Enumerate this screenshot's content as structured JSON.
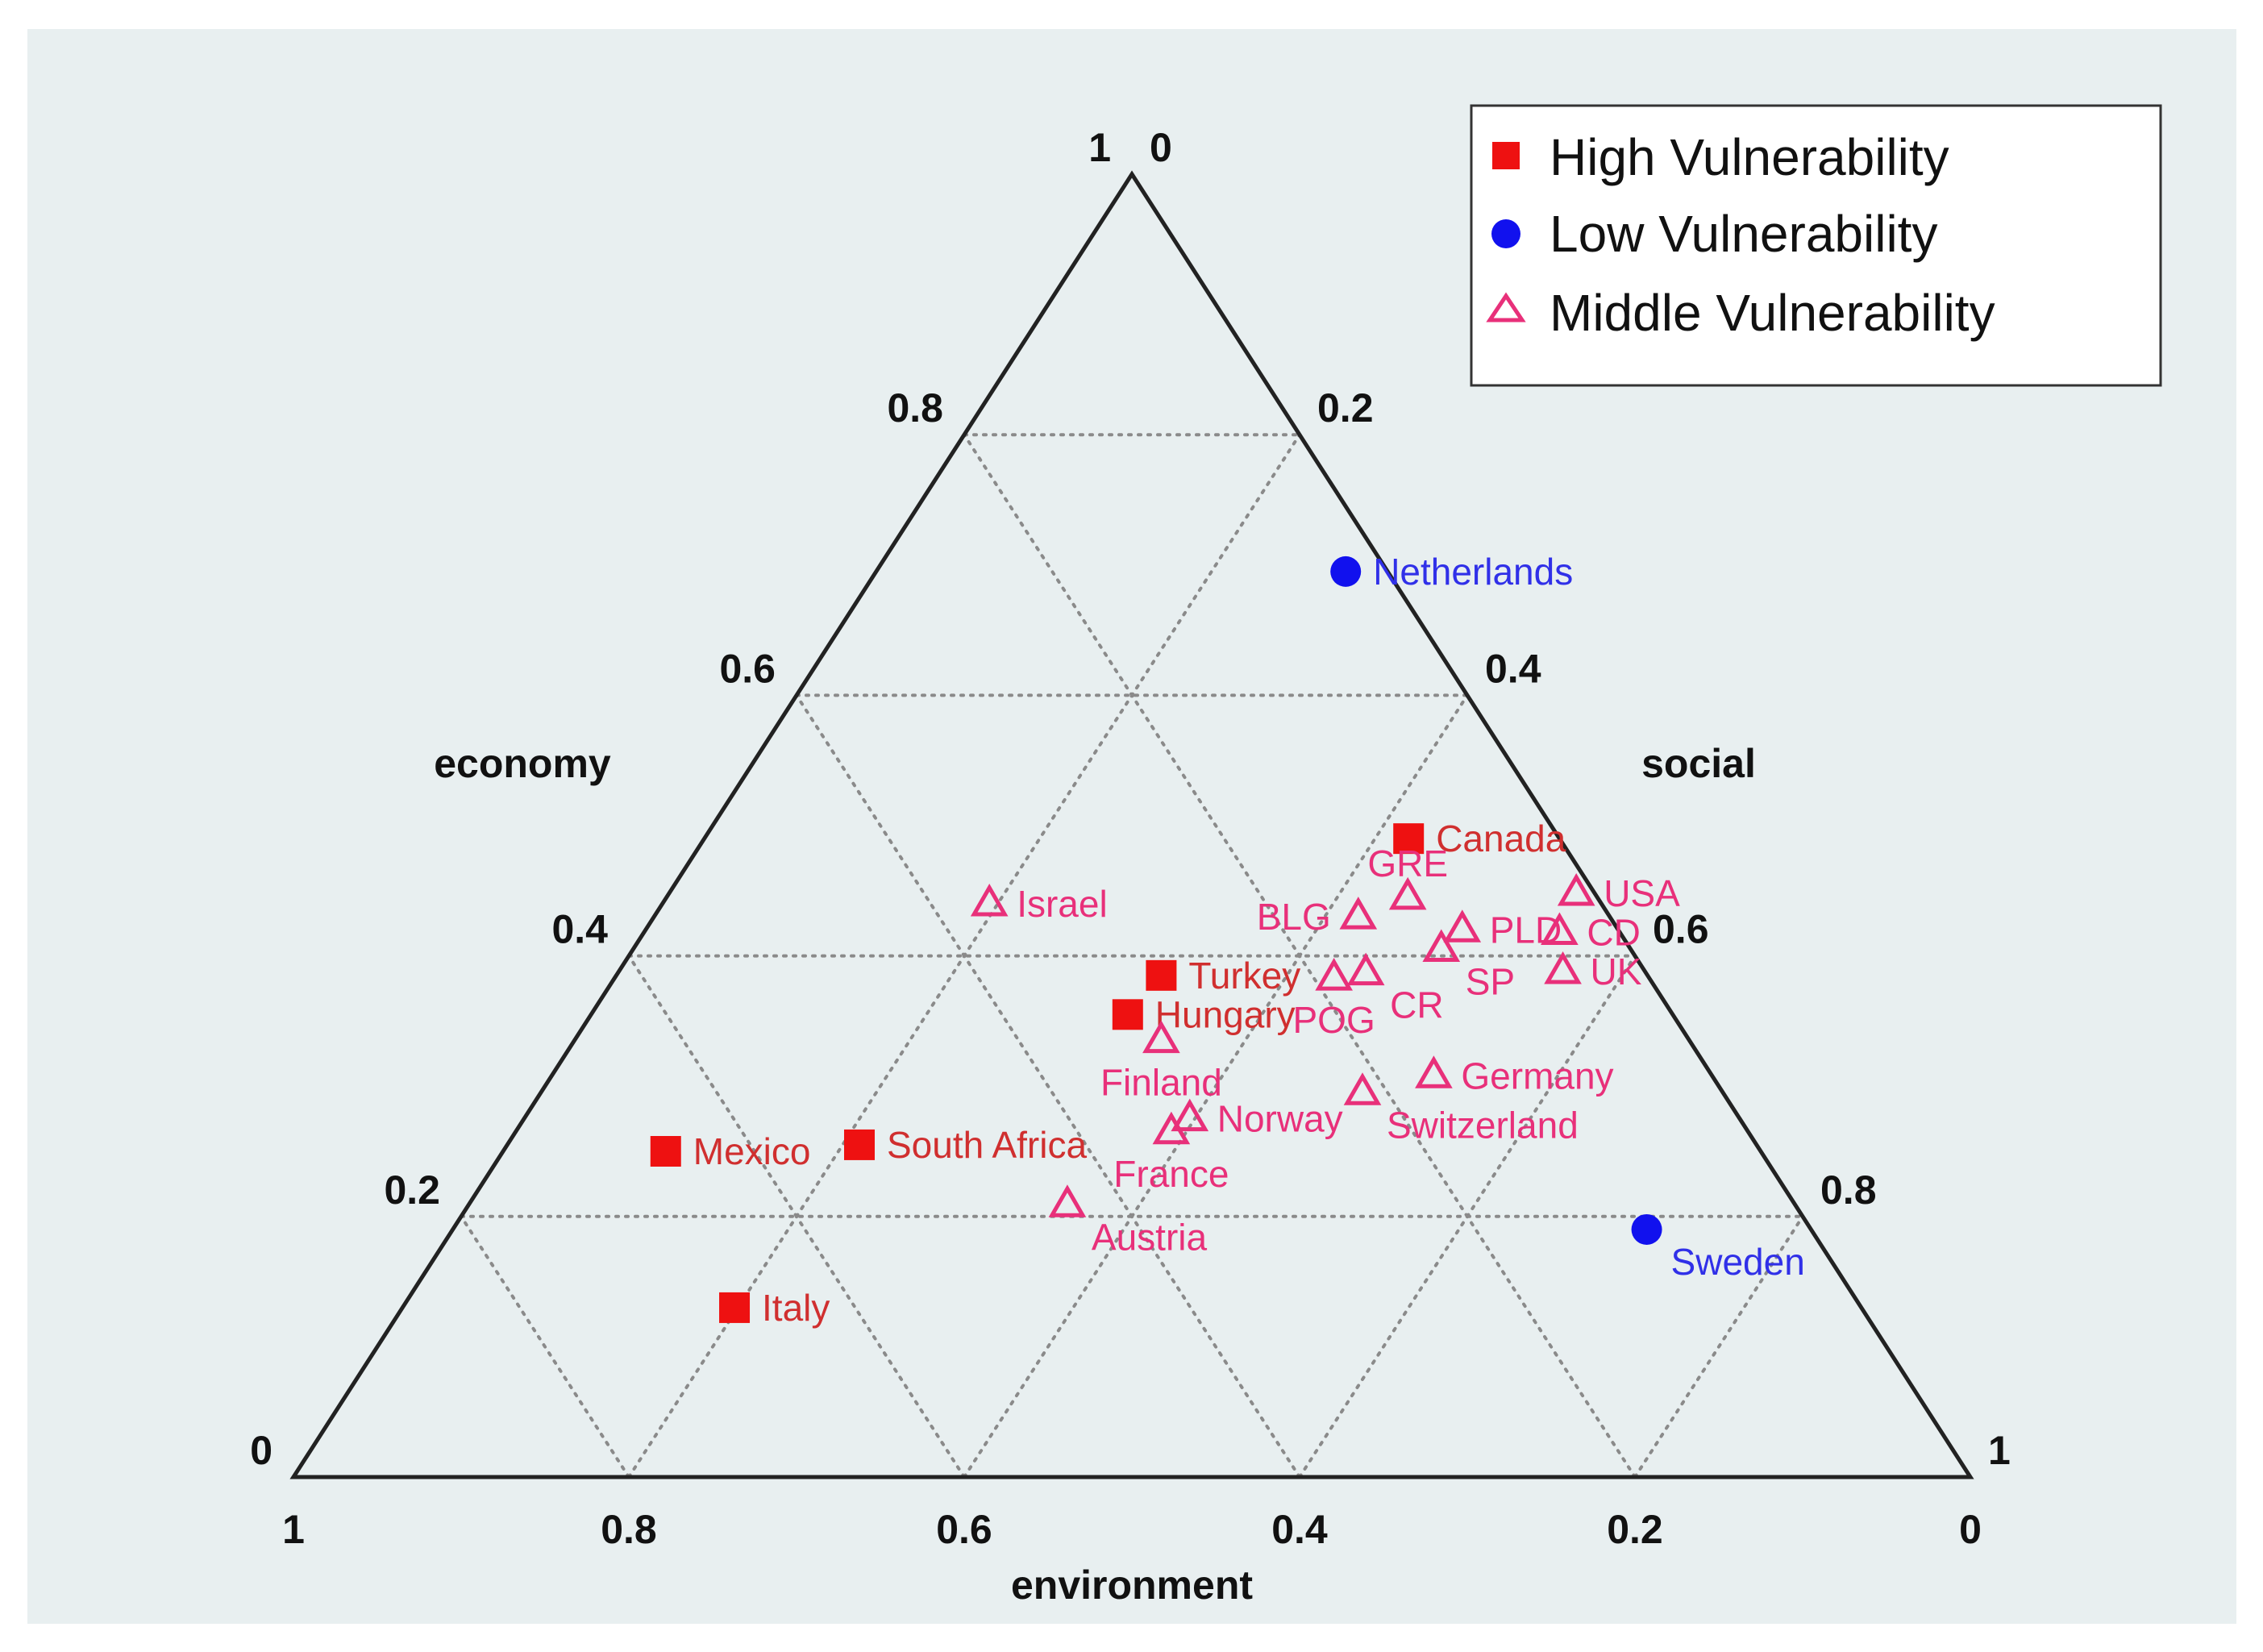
{
  "chart_data": {
    "type": "ternary-scatter",
    "axes": {
      "economy": {
        "title": "economy",
        "ticks": [
          "1",
          "0.8",
          "0.6",
          "0.4",
          "0.2",
          "0"
        ]
      },
      "social": {
        "title": "social",
        "ticks": [
          "0",
          "0.2",
          "0.4",
          "0.6",
          "0.8",
          "1"
        ]
      },
      "environment": {
        "title": "environment",
        "ticks": [
          "1",
          "0.8",
          "0.6",
          "0.4",
          "0.2",
          "0"
        ]
      }
    },
    "gridlines": [
      0.2,
      0.4,
      0.6,
      0.8
    ],
    "legend": [
      {
        "key": "high",
        "label": "High Vulnerability",
        "marker": "square",
        "color": "#ee1111"
      },
      {
        "key": "low",
        "label": "Low Vulnerability",
        "marker": "circle",
        "color": "#1111ee"
      },
      {
        "key": "middle",
        "label": "Middle Vulnerability",
        "marker": "triangle",
        "color": "#e8307a"
      }
    ],
    "label_colors": {
      "high": "#d02f2f",
      "low": "#3030e8",
      "middle": "#e8307a"
    },
    "points": [
      {
        "name": "Netherlands",
        "group": "low",
        "economy": 0.695,
        "social": 0.28,
        "label_pos": "right"
      },
      {
        "name": "Sweden",
        "group": "low",
        "economy": 0.19,
        "social": 0.712,
        "label_pos": "below-right"
      },
      {
        "name": "Canada",
        "group": "high",
        "economy": 0.49,
        "social": 0.42,
        "label_pos": "right"
      },
      {
        "name": "Turkey",
        "group": "high",
        "economy": 0.385,
        "social": 0.325,
        "label_pos": "right"
      },
      {
        "name": "Hungary",
        "group": "high",
        "economy": 0.355,
        "social": 0.32,
        "label_pos": "right"
      },
      {
        "name": "Mexico",
        "group": "high",
        "economy": 0.25,
        "social": 0.097,
        "label_pos": "right"
      },
      {
        "name": "South Africa",
        "group": "high",
        "economy": 0.255,
        "social": 0.21,
        "label_pos": "right"
      },
      {
        "name": "Italy",
        "group": "high",
        "economy": 0.13,
        "social": 0.198,
        "label_pos": "right"
      },
      {
        "name": "Israel",
        "group": "middle",
        "economy": 0.44,
        "social": 0.195,
        "label_pos": "right"
      },
      {
        "name": "GRE",
        "group": "middle",
        "economy": 0.445,
        "social": 0.442,
        "label_pos": "above"
      },
      {
        "name": "BLG",
        "group": "middle",
        "economy": 0.43,
        "social": 0.42,
        "label_pos": "left"
      },
      {
        "name": "PLD",
        "group": "middle",
        "economy": 0.42,
        "social": 0.487,
        "label_pos": "right"
      },
      {
        "name": "USA",
        "group": "middle",
        "economy": 0.448,
        "social": 0.541,
        "label_pos": "right"
      },
      {
        "name": "CD",
        "group": "middle",
        "economy": 0.418,
        "social": 0.546,
        "label_pos": "right"
      },
      {
        "name": "UK",
        "group": "middle",
        "economy": 0.388,
        "social": 0.563,
        "label_pos": "right"
      },
      {
        "name": "SP",
        "group": "middle",
        "economy": 0.405,
        "social": 0.482,
        "label_pos": "below-right"
      },
      {
        "name": "CR",
        "group": "middle",
        "economy": 0.387,
        "social": 0.446,
        "label_pos": "below-right"
      },
      {
        "name": "POG",
        "group": "middle",
        "economy": 0.383,
        "social": 0.429,
        "label_pos": "below"
      },
      {
        "name": "Finland",
        "group": "middle",
        "economy": 0.335,
        "social": 0.35,
        "label_pos": "below"
      },
      {
        "name": "Germany",
        "group": "middle",
        "economy": 0.308,
        "social": 0.526,
        "label_pos": "right"
      },
      {
        "name": "Switzerland",
        "group": "middle",
        "economy": 0.295,
        "social": 0.49,
        "label_pos": "below-right"
      },
      {
        "name": "Norway",
        "group": "middle",
        "economy": 0.275,
        "social": 0.397,
        "label_pos": "right"
      },
      {
        "name": "France",
        "group": "middle",
        "economy": 0.265,
        "social": 0.391,
        "label_pos": "below"
      },
      {
        "name": "Austria",
        "group": "middle",
        "economy": 0.209,
        "social": 0.357,
        "label_pos": "below-right"
      }
    ]
  }
}
